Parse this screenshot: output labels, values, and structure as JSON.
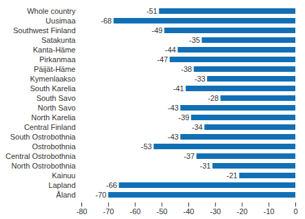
{
  "chart_data": {
    "type": "bar",
    "orientation": "horizontal",
    "categories": [
      "Whole country",
      "Uusimaa",
      "Southwest Finland",
      "Satakunta",
      "Kanta-Häme",
      "Pirkanmaa",
      "Päijät-Häme",
      "Kymenlaakso",
      "South Karelia",
      "South Savo",
      "North Savo",
      "North Karelia",
      "Central Finland",
      "South Ostrobothnia",
      "Ostrobothnia",
      "Central Ostrobothnia",
      "North Ostrobothnia",
      "Kainuu",
      "Lapland",
      "Åland"
    ],
    "values": [
      -51,
      -68,
      -49,
      -35,
      -44,
      -47,
      -38,
      -33,
      -41,
      -28,
      -43,
      -39,
      -34,
      -43,
      -53,
      -37,
      -31,
      -21,
      -66,
      -70
    ],
    "color": "#1170b5",
    "xlim": [
      -80,
      0
    ],
    "xticks": [
      -80,
      -70,
      -60,
      -50,
      -40,
      -30,
      -20,
      -10,
      0
    ],
    "grid": false,
    "data_labels": true
  }
}
